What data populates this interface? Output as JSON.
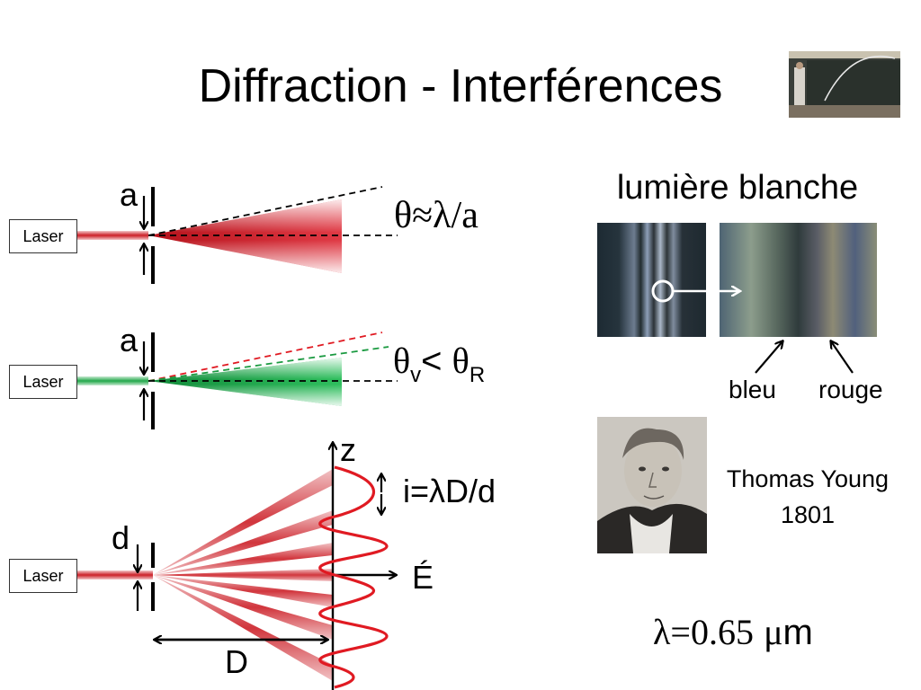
{
  "title": "Diffraction - Interférences",
  "laser_label": "Laser",
  "diagram1": {
    "slit_label": "a",
    "formula": "θ≈λ/a"
  },
  "diagram2": {
    "slit_label": "a",
    "formula_theta_v": "θ",
    "sub_v": "v",
    "lt": "< ",
    "formula_theta_r": "θ",
    "sub_r": "R"
  },
  "diagram3": {
    "slit_label": "d",
    "z_label": "z",
    "e_label": "É",
    "distance_label": "D",
    "fringe_formula": "i=λD/d"
  },
  "white_light": {
    "title": "lumière blanche",
    "bleu": "bleu",
    "rouge": "rouge"
  },
  "portrait": {
    "name": "Thomas Young",
    "year": "1801"
  },
  "wavelength": {
    "lambda": "λ",
    "eq": "=",
    "value": "0.65",
    "mu": "μ",
    "unit": "m"
  },
  "colors": {
    "red": "#cc1f27",
    "green": "#22a84a",
    "arrow": "#000000"
  }
}
